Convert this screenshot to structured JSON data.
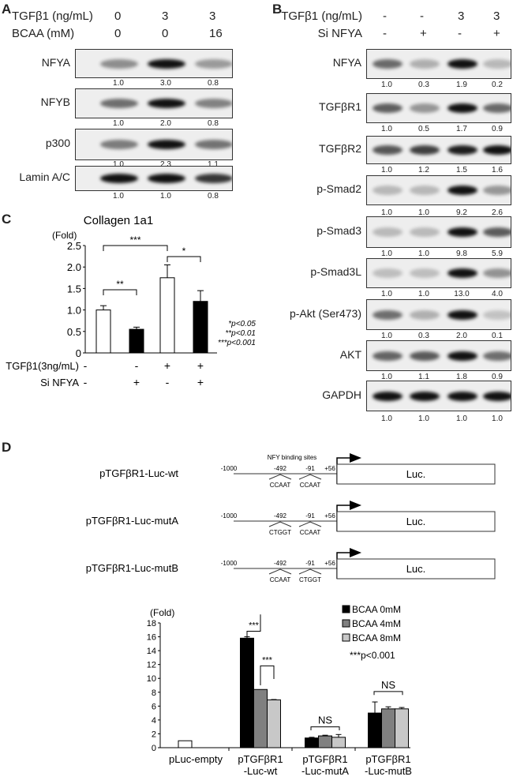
{
  "panelA": {
    "letter": "A",
    "headers": [
      {
        "label": "TGFβ1 (ng/mL)",
        "values": [
          "0",
          "3",
          "3"
        ]
      },
      {
        "label": "BCAA (mM)",
        "values": [
          "0",
          "0",
          "16"
        ]
      }
    ],
    "blots": [
      {
        "label": "NFYA",
        "quant": [
          "1.0",
          "3.0",
          "0.8"
        ]
      },
      {
        "label": "NFYB",
        "quant": [
          "1.0",
          "2.0",
          "0.8"
        ]
      },
      {
        "label": "p300",
        "quant": [
          "1.0",
          "2.3",
          "1.1"
        ]
      },
      {
        "label": "Lamin A/C",
        "quant": [
          "1.0",
          "1.0",
          "0.8"
        ]
      }
    ]
  },
  "panelB": {
    "letter": "B",
    "headers": [
      {
        "label": "TGFβ1 (ng/mL)",
        "values": [
          "-",
          "-",
          "3",
          "3"
        ]
      },
      {
        "label": "Si NFYA",
        "values": [
          "-",
          "+",
          "-",
          "+"
        ]
      }
    ],
    "blots": [
      {
        "label": "NFYA",
        "quant": [
          "1.0",
          "0.3",
          "1.9",
          "0.2"
        ]
      },
      {
        "label": "TGFβR1",
        "quant": [
          "1.0",
          "0.5",
          "1.7",
          "0.9"
        ]
      },
      {
        "label": "TGFβR2",
        "quant": [
          "1.0",
          "1.2",
          "1.5",
          "1.6"
        ]
      },
      {
        "label": "p-Smad2",
        "quant": [
          "1.0",
          "1.0",
          "9.2",
          "2.6"
        ]
      },
      {
        "label": "p-Smad3",
        "quant": [
          "1.0",
          "1.0",
          "9.8",
          "5.9"
        ]
      },
      {
        "label": "p-Smad3L",
        "quant": [
          "1.0",
          "1.0",
          "13.0",
          "4.0"
        ]
      },
      {
        "label": "p-Akt (Ser473)",
        "quant": [
          "1.0",
          "0.3",
          "2.0",
          "0.1"
        ]
      },
      {
        "label": "AKT",
        "quant": [
          "1.0",
          "1.1",
          "1.8",
          "0.9"
        ]
      },
      {
        "label": "GAPDH",
        "quant": [
          "1.0",
          "1.0",
          "1.0",
          "1.0"
        ]
      }
    ]
  },
  "panelC": {
    "letter": "C",
    "rows": [
      {
        "label": "TGFβ1(3ng/mL)",
        "values": [
          "-",
          "-",
          "+",
          "+"
        ]
      },
      {
        "label": "Si NFYA",
        "values": [
          "-",
          "+",
          "-",
          "+"
        ]
      }
    ],
    "pvalues": [
      "*p<0.05",
      "**p<0.01",
      "***p<0.001"
    ]
  },
  "panelD": {
    "letter": "D",
    "binding_label": "NFY binding sites",
    "constructs": [
      {
        "name": "pTGFβR1-Luc-wt",
        "site1": "CCAAT",
        "site2": "CCAAT"
      },
      {
        "name": "pTGFβR1-Luc-mutA",
        "site1": "CTGGT",
        "site2": "CCAAT"
      },
      {
        "name": "pTGFβR1-Luc-mutB",
        "site1": "CCAAT",
        "site2": "CTGGT"
      }
    ],
    "positions": [
      "-1000",
      "-492",
      "-91",
      "+56"
    ],
    "reporter": "Luc.",
    "pnote": "***p<0.001"
  },
  "chart_data": [
    {
      "type": "bar",
      "title": "Collagen 1a1",
      "ylabel": "(Fold)",
      "ylim": [
        0,
        2.5
      ],
      "yticks": [
        "0",
        "0.5",
        "1.0",
        "1.5",
        "2.0",
        "2.5"
      ],
      "categories": [
        "TGFβ1- / Si NFYA-",
        "TGFβ1- / Si NFYA+",
        "TGFβ1+ / Si NFYA-",
        "TGFβ1+ / Si NFYA+"
      ],
      "values": [
        1.0,
        0.55,
        1.75,
        1.2
      ],
      "errors": [
        0.1,
        0.05,
        0.3,
        0.25
      ],
      "colors": [
        "#ffffff",
        "#000000",
        "#ffffff",
        "#000000"
      ],
      "annotations": [
        {
          "from": 0,
          "to": 1,
          "text": "**"
        },
        {
          "from": 0,
          "to": 2,
          "text": "***"
        },
        {
          "from": 2,
          "to": 3,
          "text": "*"
        }
      ]
    },
    {
      "type": "bar",
      "ylabel": "(Fold)",
      "ylim": [
        0,
        18
      ],
      "yticks": [
        "0",
        "2",
        "4",
        "6",
        "8",
        "10",
        "12",
        "14",
        "16",
        "18"
      ],
      "categories": [
        "pLuc-empty",
        "pTGFβR1\n-Luc-wt",
        "pTGFβR1\n-Luc-mutA",
        "pTGFβR1\n-Luc-mutB"
      ],
      "empty": {
        "value": 1.0,
        "color": "#ffffff"
      },
      "series": [
        {
          "name": "BCAA 0mM",
          "color": "#000000",
          "values": [
            null,
            15.8,
            1.4,
            5.0
          ],
          "errors": [
            null,
            0.2,
            0.1,
            1.6
          ]
        },
        {
          "name": "BCAA 4mM",
          "color": "#808080",
          "values": [
            null,
            8.4,
            1.7,
            5.6
          ],
          "errors": [
            null,
            0,
            0.1,
            0.3
          ]
        },
        {
          "name": "BCAA 8mM",
          "color": "#c8c8c8",
          "values": [
            null,
            6.9,
            1.5,
            5.6
          ],
          "errors": [
            null,
            0.05,
            0.4,
            0.2
          ]
        }
      ],
      "annotations": [
        {
          "text": "***"
        },
        {
          "text": "***"
        },
        {
          "text": "NS"
        },
        {
          "text": "NS"
        }
      ],
      "legend": "top-right"
    }
  ]
}
